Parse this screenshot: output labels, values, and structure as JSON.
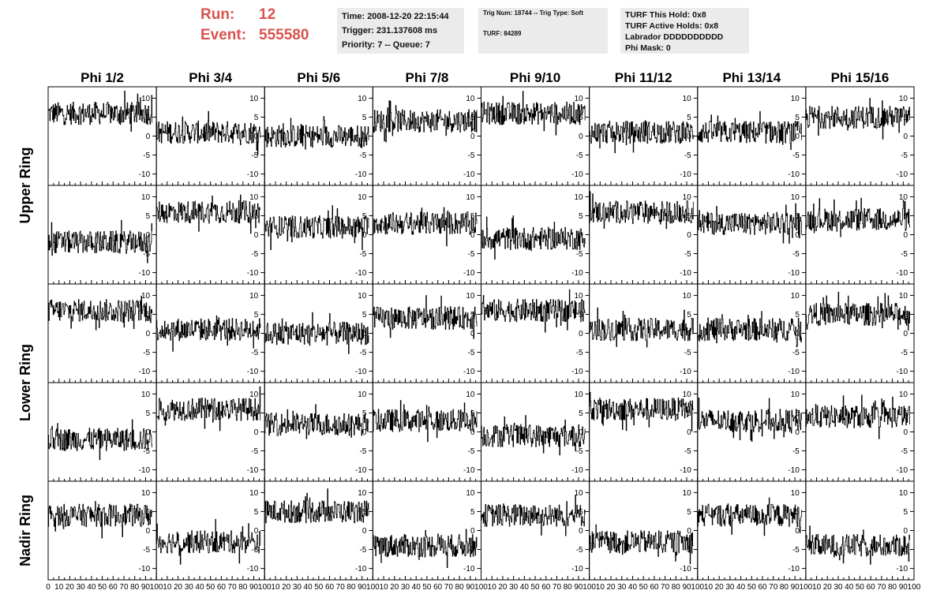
{
  "header": {
    "run_label": "Run:",
    "run_value": "12",
    "event_label": "Event:",
    "event_value": "555580",
    "info1": [
      "Time: 2008-12-20 22:15:44",
      "Trigger: 231.137608 ms",
      "Priority: 7 -- Queue: 7"
    ],
    "info2": [
      "Trig Num: 18744 -- Trig Type: Soft",
      "",
      "TURF: 84289"
    ],
    "info3": [
      "TURF This Hold: 0x8",
      "TURF Active Holds: 0x8",
      "Labrador DDDDDDDDDD",
      "Phi Mask: 0"
    ]
  },
  "chart_data": {
    "type": "line",
    "columns": [
      "Phi 1/2",
      "Phi 3/4",
      "Phi 5/6",
      "Phi 7/8",
      "Phi 9/10",
      "Phi 11/12",
      "Phi 13/14",
      "Phi 15/16"
    ],
    "ring_labels": [
      "Upper Ring",
      "Lower Ring",
      "Nadir Ring"
    ],
    "ring_row_spans": [
      [
        0,
        1
      ],
      [
        2,
        3
      ],
      [
        4,
        4
      ]
    ],
    "xlim": [
      0,
      100
    ],
    "ylim": [
      -13,
      13
    ],
    "x_sample_range": [
      0,
      96
    ],
    "x_ticks": [
      10,
      20,
      30,
      40,
      50,
      60,
      70,
      80,
      90,
      100
    ],
    "y_ticks": [
      -10,
      -5,
      0,
      5,
      10
    ],
    "y_tick_side": "right",
    "grid": false,
    "colors": {
      "trace": "#000000",
      "axis": "#000000"
    },
    "panel_baselines": [
      [
        6,
        1,
        0,
        4,
        6,
        1,
        1,
        5
      ],
      [
        -2,
        6,
        2,
        3,
        -1,
        6,
        3,
        4
      ],
      [
        6,
        1,
        0,
        4,
        6,
        1,
        1,
        5
      ],
      [
        -2,
        6,
        2,
        3,
        -1,
        6,
        3,
        4
      ],
      [
        4,
        -3,
        5,
        -4,
        4,
        -3,
        4,
        -4
      ]
    ],
    "panel_amplitude": 3
  }
}
